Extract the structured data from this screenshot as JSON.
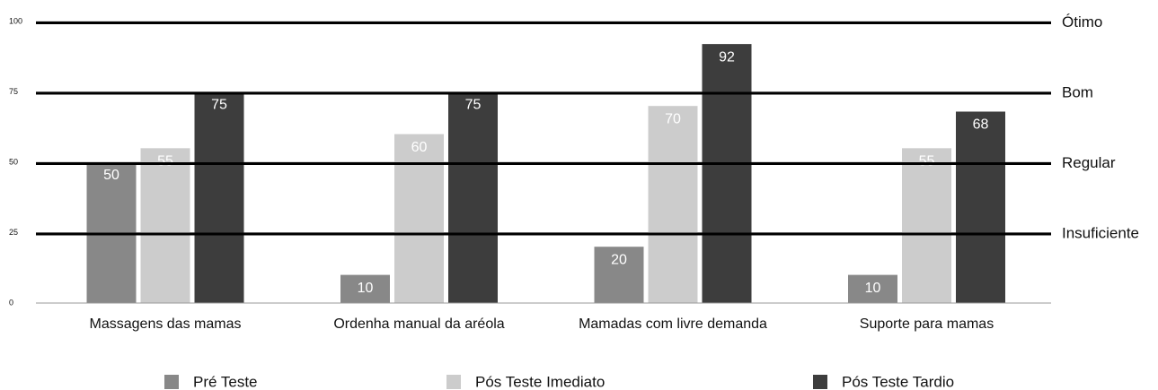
{
  "chart_data": {
    "type": "bar",
    "categories": [
      "Massagens das mamas",
      "Ordenha manual da aréola",
      "Mamadas com livre demanda",
      "Suporte para mamas"
    ],
    "series": [
      {
        "name": "Pré Teste",
        "color": "#888888",
        "values": [
          50,
          10,
          20,
          10
        ]
      },
      {
        "name": "Pós Teste Imediato",
        "color": "#cccccc",
        "values": [
          55,
          60,
          70,
          55
        ]
      },
      {
        "name": "Pós Teste Tardio",
        "color": "#3d3d3d",
        "values": [
          75,
          75,
          92,
          68
        ]
      }
    ],
    "ylim": [
      0,
      100
    ],
    "yticks": [
      0,
      25,
      50,
      75,
      100
    ],
    "grid": true,
    "reference_lines": [
      {
        "label": "Ótimo",
        "value": 100
      },
      {
        "label": "Bom",
        "value": 75
      },
      {
        "label": "Regular",
        "value": 50
      },
      {
        "label": "Insuficiente",
        "value": 25
      }
    ]
  }
}
